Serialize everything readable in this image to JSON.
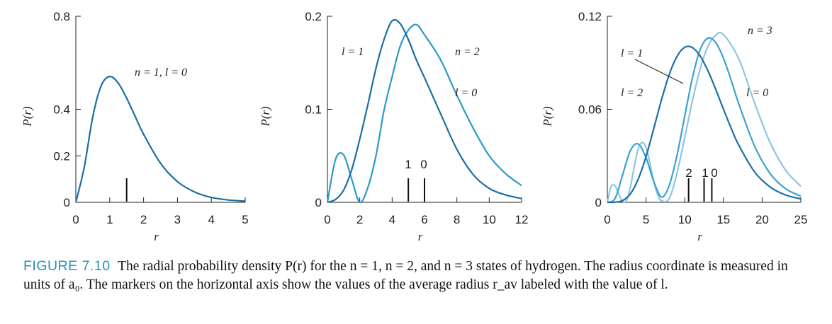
{
  "chart_data": [
    {
      "type": "line",
      "ylabel": "P(r)",
      "xlabel": "r",
      "xlim": [
        0,
        5
      ],
      "ylim": [
        0,
        0.8
      ],
      "xticks": [
        "0",
        "1",
        "2",
        "3",
        "4",
        "5"
      ],
      "yticks": [
        "0",
        "0.2",
        "0.4",
        "0.8"
      ],
      "series": [
        {
          "label": "n = 1, l = 0",
          "n": 1,
          "l": 0,
          "color": "#1b6fa3",
          "x": [
            0,
            0.25,
            0.5,
            0.75,
            1,
            1.25,
            1.5,
            1.75,
            2,
            2.5,
            3,
            3.5,
            4,
            4.5,
            5
          ],
          "y": [
            0,
            0.152,
            0.368,
            0.502,
            0.541,
            0.513,
            0.448,
            0.37,
            0.293,
            0.168,
            0.089,
            0.045,
            0.021,
            0.01,
            0.005
          ]
        }
      ],
      "markers": [
        {
          "x": 1.5,
          "label": ""
        }
      ]
    },
    {
      "type": "line",
      "ylabel": "P(r)",
      "xlabel": "r",
      "xlim": [
        0,
        12
      ],
      "ylim": [
        0,
        0.2
      ],
      "xticks": [
        "0",
        "2",
        "4",
        "6",
        "8",
        "10",
        "12"
      ],
      "yticks": [
        "0",
        "0.1",
        "0.2"
      ],
      "series_note": "n = 2",
      "series": [
        {
          "label": "l = 0",
          "n": 2,
          "l": 0,
          "color": "#2a9bc8",
          "x": [
            0,
            0.5,
            1,
            1.5,
            2,
            2.5,
            3,
            3.5,
            4,
            4.5,
            5,
            5.5,
            6,
            7,
            8,
            9,
            10,
            11,
            12
          ],
          "y": [
            0,
            0.046,
            0.051,
            0.025,
            0,
            0.016,
            0.05,
            0.099,
            0.135,
            0.168,
            0.185,
            0.191,
            0.18,
            0.153,
            0.115,
            0.08,
            0.05,
            0.031,
            0.018
          ]
        },
        {
          "label": "l = 1",
          "n": 2,
          "l": 1,
          "color": "#1b6fa3",
          "x": [
            0,
            0.5,
            1,
            1.5,
            2,
            2.5,
            3,
            3.5,
            4,
            4.5,
            5,
            5.5,
            6,
            7,
            8,
            9,
            10,
            11,
            12
          ],
          "y": [
            0,
            0.003,
            0.013,
            0.035,
            0.068,
            0.105,
            0.144,
            0.175,
            0.195,
            0.192,
            0.175,
            0.153,
            0.134,
            0.095,
            0.057,
            0.03,
            0.015,
            0.008,
            0.004
          ]
        }
      ],
      "markers": [
        {
          "x": 5,
          "label": "1"
        },
        {
          "x": 6,
          "label": "0"
        }
      ]
    },
    {
      "type": "line",
      "ylabel": "P(r)",
      "xlabel": "r",
      "xlim": [
        0,
        25
      ],
      "ylim": [
        0,
        0.12
      ],
      "xticks": [
        "0",
        "5",
        "10",
        "15",
        "20",
        "25"
      ],
      "yticks": [
        "0",
        "0.06",
        "0.12"
      ],
      "series_note": "n = 3",
      "series": [
        {
          "label": "l = 0",
          "n": 3,
          "l": 0,
          "color": "#8cc6e2",
          "x": [
            0,
            0.5,
            1,
            1.5,
            2,
            2.5,
            3,
            3.5,
            4,
            4.5,
            5,
            5.5,
            6,
            6.5,
            7,
            8,
            9,
            10,
            11,
            12,
            13,
            14,
            15,
            17,
            19,
            21,
            23,
            25
          ],
          "y": [
            0,
            0.0102,
            0.0106,
            0.005,
            0.0006,
            0.0015,
            0.0104,
            0.0237,
            0.0347,
            0.0386,
            0.0353,
            0.0253,
            0.0135,
            0.005,
            0.001,
            0.0024,
            0.0189,
            0.0417,
            0.0656,
            0.0862,
            0.1006,
            0.1078,
            0.1082,
            0.0924,
            0.0645,
            0.0389,
            0.021,
            0.0103
          ]
        },
        {
          "label": "l = 1",
          "n": 3,
          "l": 1,
          "color": "#3aa3cf",
          "x": [
            0,
            1,
            2,
            3,
            4,
            5,
            6,
            7,
            8,
            9,
            10,
            11,
            12,
            13,
            14,
            15,
            16,
            17,
            19,
            21,
            23,
            25
          ],
          "y": [
            0,
            0.0025,
            0.0182,
            0.0336,
            0.0376,
            0.0287,
            0.0134,
            0.0034,
            0.0109,
            0.0303,
            0.0556,
            0.0804,
            0.0986,
            0.1059,
            0.1031,
            0.093,
            0.0788,
            0.0633,
            0.0366,
            0.0188,
            0.0089,
            0.004
          ]
        },
        {
          "label": "l = 2",
          "n": 3,
          "l": 2,
          "color": "#1b6fa3",
          "x": [
            0,
            1,
            2,
            3,
            4,
            5,
            6,
            7,
            8,
            9,
            10,
            11,
            12,
            13,
            14,
            15,
            16,
            17,
            19,
            21,
            23,
            25
          ],
          "y": [
            0,
            0.0001,
            0.0012,
            0.0056,
            0.0151,
            0.0295,
            0.0476,
            0.0662,
            0.0825,
            0.0941,
            0.1,
            0.0998,
            0.0943,
            0.0848,
            0.0729,
            0.0601,
            0.0478,
            0.0367,
            0.0198,
            0.01,
            0.0048,
            0.0022
          ]
        }
      ],
      "markers": [
        {
          "x": 10.5,
          "label": "2"
        },
        {
          "x": 12.5,
          "label": "1"
        },
        {
          "x": 13.5,
          "label": "0"
        }
      ]
    }
  ],
  "caption": {
    "label": "FIGURE 7.10",
    "text": "The radial probability density P(r) for the n = 1, n = 2, and n = 3 states of hydrogen. The radius coordinate is measured in units of a₀. The markers on the horizontal axis show the values of the average radius r_av labeled with the value of l."
  }
}
